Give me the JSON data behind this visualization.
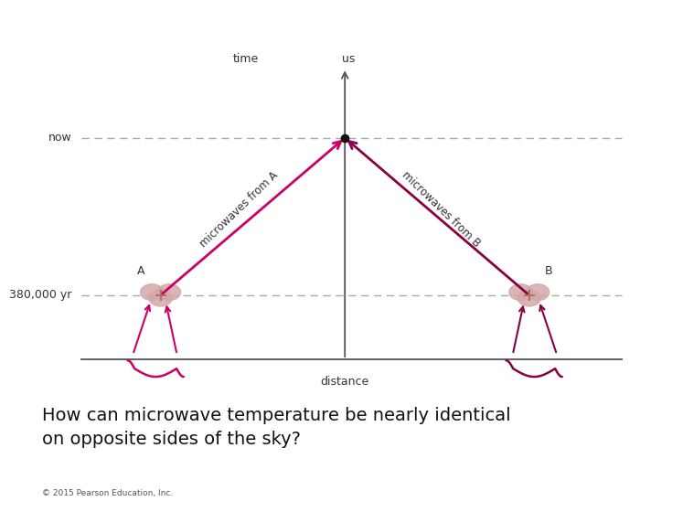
{
  "bg_color": "#ffffff",
  "header_color": "#7b5ea7",
  "arrow_color_A": "#cc0066",
  "arrow_color_B": "#8b0045",
  "blob_color": "#d4a8a8",
  "axis_color": "#555555",
  "dashed_color": "#aaaaaa",
  "text_color": "#333333",
  "label_A": "A",
  "label_B": "B",
  "label_time": "time",
  "label_us": "us",
  "label_now": "now",
  "label_380kyr": "380,000 yr",
  "label_distance": "distance",
  "label_mw_A": "microwaves from A",
  "label_mw_B": "microwaves from B",
  "title_text": "How can microwave temperature be nearly identical\non opposite sides of the sky?",
  "copyright_text": "© 2015 Pearson Education, Inc."
}
